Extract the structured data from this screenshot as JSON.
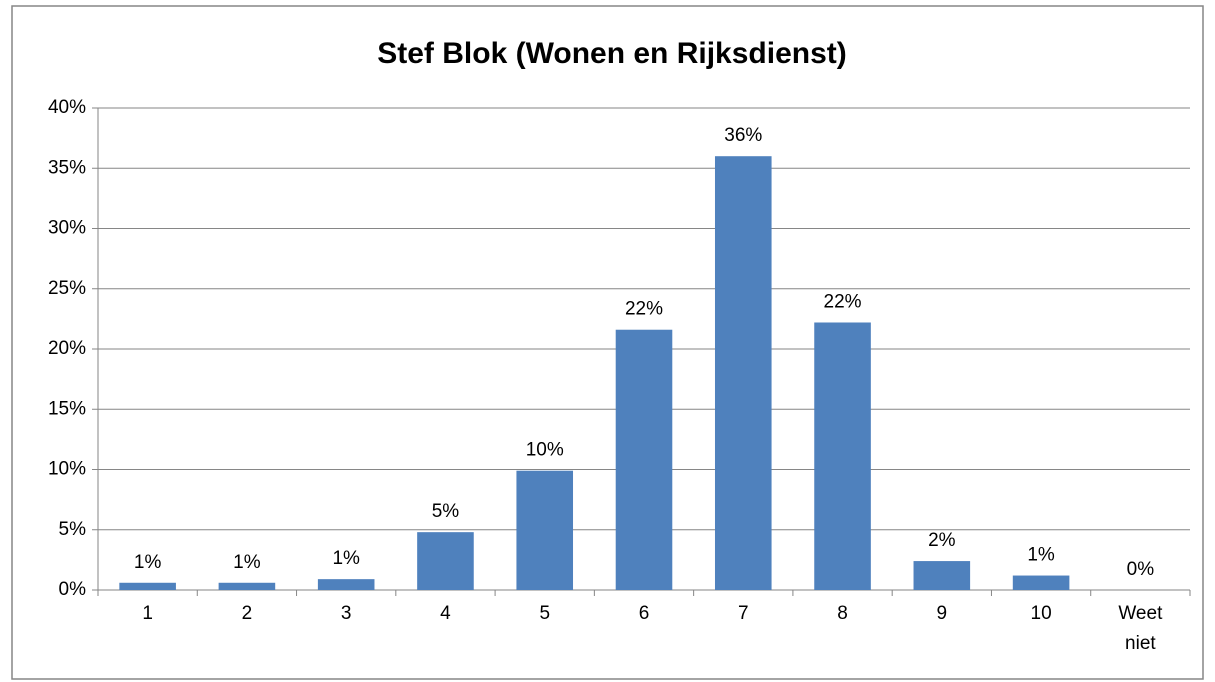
{
  "chart_data": {
    "type": "bar",
    "title": "Stef Blok (Wonen en Rijksdienst)",
    "categories": [
      "1",
      "2",
      "3",
      "4",
      "5",
      "6",
      "7",
      "8",
      "9",
      "10",
      "Weet niet"
    ],
    "values": [
      0.6,
      0.6,
      0.9,
      4.8,
      9.9,
      21.6,
      36,
      22.2,
      2.4,
      1.2,
      0
    ],
    "value_labels": [
      "1%",
      "1%",
      "1%",
      "5%",
      "10%",
      "22%",
      "36%",
      "22%",
      "2%",
      "1%",
      "0%"
    ],
    "color": "#4f81bd",
    "ylim": [
      0,
      40
    ],
    "yticks": [
      {
        "value": 0,
        "label": "0%"
      },
      {
        "value": 5,
        "label": "5%"
      },
      {
        "value": 10,
        "label": "10%"
      },
      {
        "value": 15,
        "label": "15%"
      },
      {
        "value": 20,
        "label": "20%"
      },
      {
        "value": 25,
        "label": "25%"
      },
      {
        "value": 30,
        "label": "30%"
      },
      {
        "value": 35,
        "label": "35%"
      },
      {
        "value": 40,
        "label": "40%"
      }
    ],
    "grid": true
  }
}
